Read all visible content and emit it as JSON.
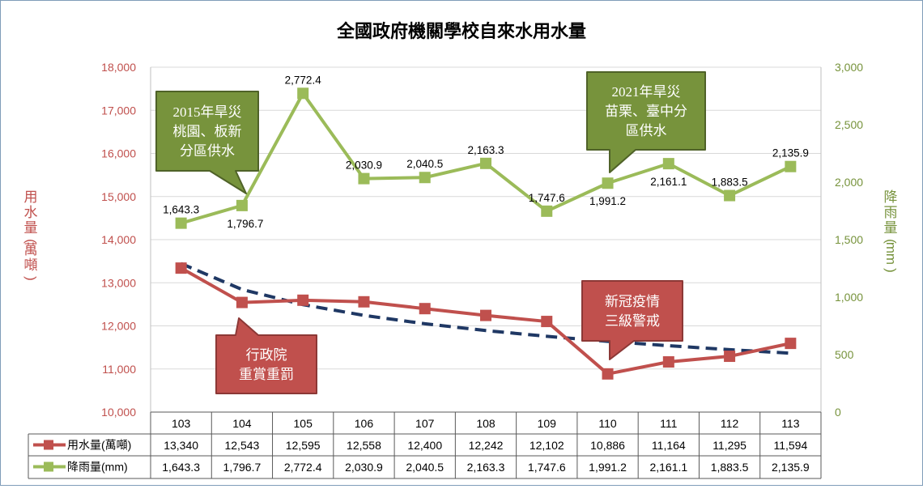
{
  "chart_data": {
    "type": "line",
    "title": "全國政府機關學校自來水用水量",
    "categories": [
      "103",
      "104",
      "105",
      "106",
      "107",
      "108",
      "109",
      "110",
      "111",
      "112",
      "113"
    ],
    "left_axis": {
      "label": "用水量(萬噸)",
      "min": 10000,
      "max": 18000,
      "step": 1000,
      "ticks": [
        "10,000",
        "11,000",
        "12,000",
        "13,000",
        "14,000",
        "15,000",
        "16,000",
        "17,000",
        "18,000"
      ]
    },
    "right_axis": {
      "label": "降雨量(mm)",
      "min": 0,
      "max": 3000,
      "step": 500,
      "ticks": [
        "0",
        "500",
        "1,000",
        "1,500",
        "2,000",
        "2,500",
        "3,000"
      ]
    },
    "grid": true,
    "legend": "data-table-bottom",
    "series": [
      {
        "name": "用水量(萬噸)",
        "axis": "left",
        "color": "#c0504d",
        "values": [
          13340,
          12543,
          12595,
          12558,
          12400,
          12242,
          12102,
          10886,
          11164,
          11295,
          11594
        ],
        "display": [
          "13,340",
          "12,543",
          "12,595",
          "12,558",
          "12,400",
          "12,242",
          "12,102",
          "10,886",
          "11,164",
          "11,295",
          "11,594"
        ]
      },
      {
        "name": "降雨量(mm)",
        "axis": "right",
        "color": "#9bbb59",
        "values": [
          1643.3,
          1796.7,
          2772.4,
          2030.9,
          2040.5,
          2163.3,
          1747.6,
          1991.2,
          2161.1,
          1883.5,
          2135.9
        ],
        "display": [
          "1,643.3",
          "1,796.7",
          "2,772.4",
          "2,030.9",
          "2,040.5",
          "2,163.3",
          "1,747.6",
          "1,991.2",
          "2,161.1",
          "1,883.5",
          "2,135.9"
        ]
      }
    ],
    "trendline": {
      "series": "用水量(萬噸)",
      "type": "logarithmic",
      "color": "#1f3864",
      "style": "dashed"
    },
    "annotations": [
      {
        "lines": [
          "2015年旱災",
          "桃園、板新",
          "分區供水"
        ],
        "color": "#77933c"
      },
      {
        "lines": [
          "2021年旱災",
          "苗栗、臺中分",
          "區供水"
        ],
        "color": "#77933c"
      },
      {
        "lines": [
          "行政院",
          "重賞重罰"
        ],
        "color": "#c0504d"
      },
      {
        "lines": [
          "新冠疫情",
          "三級警戒"
        ],
        "color": "#c0504d"
      }
    ]
  }
}
